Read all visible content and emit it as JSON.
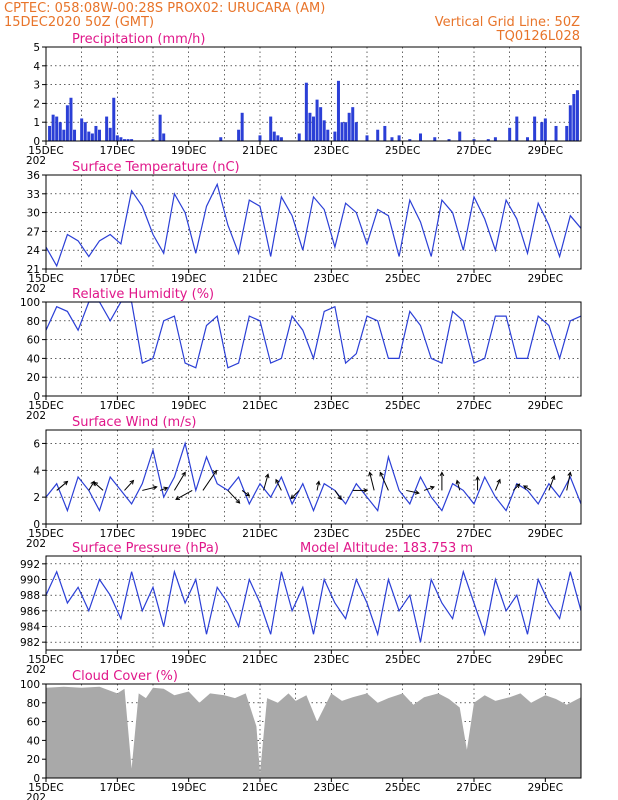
{
  "header": {
    "line1_left": "CPTEC:   058:08W-00:28S   PROX02: URUCARA (AM)",
    "line2_left": "15DEC2020 50Z (GMT)",
    "line2_right": "Vertical Grid Line: 50Z",
    "line3_right": "TQ0126L028"
  },
  "colors": {
    "series": "#2b3fd6",
    "title": "#e0178a",
    "header": "#e8742a",
    "cloud": "#a9a9a9"
  },
  "x_axis": {
    "start_day": 15,
    "end_day": 30,
    "tick_labels": [
      "15DEC",
      "17DEC",
      "19DEC",
      "21DEC",
      "23DEC",
      "25DEC",
      "27DEC",
      "29DEC"
    ],
    "tick_days": [
      15,
      17,
      19,
      21,
      23,
      25,
      27,
      29
    ],
    "year_fragment": "202"
  },
  "chart_data": [
    {
      "id": "precip",
      "type": "bar",
      "title": "Precipitation (mm/h)",
      "ylim": [
        0,
        5
      ],
      "yticks": [
        0,
        1,
        2,
        3,
        4,
        5
      ],
      "x_days": [
        15.1,
        15.2,
        15.3,
        15.4,
        15.5,
        15.6,
        15.7,
        15.8,
        16.0,
        16.1,
        16.2,
        16.3,
        16.4,
        16.5,
        16.7,
        16.8,
        16.9,
        17.0,
        17.1,
        17.2,
        17.3,
        17.4,
        18.0,
        18.2,
        18.3,
        19.9,
        20.4,
        20.5,
        21.0,
        21.3,
        21.4,
        21.5,
        21.6,
        22.1,
        22.3,
        22.4,
        22.5,
        22.6,
        22.7,
        22.8,
        22.9,
        23.1,
        23.2,
        23.3,
        23.4,
        23.5,
        23.6,
        23.7,
        24.0,
        24.3,
        24.5,
        24.7,
        24.9,
        25.2,
        25.5,
        25.9,
        26.3,
        26.6,
        27.0,
        27.4,
        27.6,
        28.0,
        28.2,
        28.5,
        28.7,
        28.9,
        29.0,
        29.3,
        29.6,
        29.7,
        29.8,
        29.9
      ],
      "values": [
        0.8,
        1.4,
        1.3,
        1.0,
        0.6,
        1.9,
        2.3,
        0.6,
        1.2,
        1.0,
        0.5,
        0.4,
        0.8,
        0.6,
        1.3,
        0.7,
        2.3,
        0.3,
        0.2,
        0.1,
        0.1,
        0.1,
        0.1,
        1.4,
        0.4,
        0.2,
        0.6,
        1.5,
        0.3,
        1.3,
        0.5,
        0.3,
        0.2,
        0.4,
        3.1,
        1.5,
        1.3,
        2.2,
        1.8,
        1.1,
        0.6,
        0.5,
        3.2,
        1.0,
        1.0,
        1.5,
        1.8,
        1.0,
        0.3,
        0.6,
        0.8,
        0.2,
        0.3,
        0.1,
        0.4,
        0.2,
        0.1,
        0.5,
        0.1,
        0.1,
        0.2,
        0.7,
        1.3,
        0.2,
        1.3,
        1.0,
        1.2,
        0.8,
        0.8,
        1.9,
        2.5,
        2.7
      ]
    },
    {
      "id": "temp",
      "type": "line",
      "title": "Surface Temperature (nC)",
      "ylim": [
        21,
        36
      ],
      "yticks": [
        21,
        24,
        27,
        30,
        33,
        36
      ],
      "x_days": [
        15.0,
        15.3,
        15.6,
        15.9,
        16.2,
        16.5,
        16.8,
        17.1,
        17.4,
        17.7,
        18.0,
        18.3,
        18.6,
        18.9,
        19.2,
        19.5,
        19.8,
        20.1,
        20.4,
        20.7,
        21.0,
        21.3,
        21.6,
        21.9,
        22.2,
        22.5,
        22.8,
        23.1,
        23.4,
        23.7,
        24.0,
        24.3,
        24.6,
        24.9,
        25.2,
        25.5,
        25.8,
        26.1,
        26.4,
        26.7,
        27.0,
        27.3,
        27.6,
        27.9,
        28.2,
        28.5,
        28.8,
        29.1,
        29.4,
        29.7,
        30.0
      ],
      "values": [
        24.5,
        21.5,
        26.5,
        25.5,
        23.0,
        25.5,
        26.5,
        25.0,
        33.5,
        31.0,
        26.5,
        23.5,
        33.0,
        30.0,
        23.5,
        31.0,
        34.5,
        28.0,
        23.5,
        32.0,
        31.0,
        23.0,
        32.5,
        29.5,
        24.0,
        32.5,
        30.5,
        24.5,
        31.5,
        30.0,
        25.0,
        30.5,
        29.5,
        23.0,
        32.0,
        28.5,
        23.0,
        32.0,
        30.0,
        24.0,
        32.5,
        29.0,
        24.0,
        32.0,
        29.0,
        23.5,
        31.5,
        28.0,
        23.0,
        29.5,
        27.5
      ]
    },
    {
      "id": "rh",
      "type": "line",
      "title": "Relative Humidity (%)",
      "ylim": [
        0,
        100
      ],
      "yticks": [
        0,
        20,
        40,
        60,
        80,
        100
      ],
      "x_days": [
        15.0,
        15.3,
        15.6,
        15.9,
        16.2,
        16.5,
        16.8,
        17.1,
        17.4,
        17.7,
        18.0,
        18.3,
        18.6,
        18.9,
        19.2,
        19.5,
        19.8,
        20.1,
        20.4,
        20.7,
        21.0,
        21.3,
        21.6,
        21.9,
        22.2,
        22.5,
        22.8,
        23.1,
        23.4,
        23.7,
        24.0,
        24.3,
        24.6,
        24.9,
        25.2,
        25.5,
        25.8,
        26.1,
        26.4,
        26.7,
        27.0,
        27.3,
        27.6,
        27.9,
        28.2,
        28.5,
        28.8,
        29.1,
        29.4,
        29.7,
        30.0
      ],
      "values": [
        70,
        95,
        90,
        70,
        100,
        100,
        80,
        100,
        100,
        35,
        40,
        80,
        85,
        35,
        30,
        75,
        85,
        30,
        35,
        85,
        80,
        35,
        40,
        85,
        70,
        40,
        90,
        95,
        35,
        45,
        85,
        80,
        40,
        40,
        90,
        75,
        40,
        35,
        90,
        80,
        35,
        40,
        85,
        85,
        40,
        40,
        85,
        75,
        40,
        80,
        85
      ]
    },
    {
      "id": "wind",
      "type": "line",
      "title": "Surface Wind (m/s)",
      "ylim": [
        0,
        7
      ],
      "yticks": [
        0,
        2,
        4,
        6
      ],
      "x_days": [
        15.0,
        15.3,
        15.6,
        15.9,
        16.2,
        16.5,
        16.8,
        17.1,
        17.4,
        17.7,
        18.0,
        18.3,
        18.6,
        18.9,
        19.2,
        19.5,
        19.8,
        20.1,
        20.4,
        20.7,
        21.0,
        21.3,
        21.6,
        21.9,
        22.2,
        22.5,
        22.8,
        23.1,
        23.4,
        23.7,
        24.0,
        24.3,
        24.6,
        24.9,
        25.2,
        25.5,
        25.8,
        26.1,
        26.4,
        26.7,
        27.0,
        27.3,
        27.6,
        27.9,
        28.2,
        28.5,
        28.8,
        29.1,
        29.4,
        29.7,
        30.0
      ],
      "values": [
        2.0,
        3.0,
        1.0,
        3.5,
        2.5,
        1.0,
        3.5,
        2.5,
        1.5,
        3.0,
        5.5,
        2.0,
        3.5,
        6.0,
        2.5,
        5.0,
        3.0,
        2.5,
        3.5,
        1.5,
        3.0,
        2.0,
        3.5,
        1.5,
        3.0,
        1.0,
        3.0,
        2.5,
        1.5,
        3.0,
        2.0,
        1.0,
        5.0,
        2.5,
        1.5,
        3.5,
        2.0,
        1.0,
        3.0,
        2.5,
        1.5,
        3.5,
        2.0,
        1.0,
        3.0,
        2.5,
        1.5,
        3.0,
        2.0,
        3.5,
        1.5
      ],
      "vectors": {
        "x_days": [
          15.3,
          16.2,
          16.6,
          17.2,
          17.7,
          18.2,
          18.6,
          19.1,
          19.4,
          20.1,
          20.5,
          21.1,
          21.6,
          22.1,
          22.6,
          23.1,
          23.6,
          24.2,
          24.6,
          25.1,
          25.6,
          26.1,
          26.6,
          27.1,
          27.6,
          28.1,
          28.6,
          29.1,
          29.6
        ],
        "u": [
          1.2,
          0.6,
          -1.0,
          1.0,
          1.6,
          0.8,
          1.2,
          -1.8,
          1.5,
          1.3,
          0.8,
          0.5,
          -0.6,
          -0.9,
          0.2,
          0.7,
          1.6,
          -0.5,
          -0.9,
          1.4,
          1.1,
          0.0,
          -0.3,
          0.0,
          0.5,
          0.7,
          -0.8,
          0.6,
          0.4
        ],
        "v": [
          1.0,
          1.0,
          0.9,
          1.1,
          0.4,
          0.3,
          2.0,
          -1.0,
          2.2,
          -1.4,
          -0.6,
          1.8,
          1.2,
          -0.9,
          1.0,
          -1.0,
          0.0,
          2.0,
          2.0,
          -0.3,
          0.4,
          2.0,
          1.1,
          1.5,
          1.2,
          0.7,
          0.5,
          1.6,
          2.0
        ]
      }
    },
    {
      "id": "pressure",
      "type": "line",
      "title": "Surface Pressure (hPa)",
      "subtitle": "Model Altitude: 183.753 m",
      "ylim": [
        981,
        993
      ],
      "yticks": [
        982,
        984,
        986,
        988,
        990,
        992
      ],
      "x_days": [
        15.0,
        15.3,
        15.6,
        15.9,
        16.2,
        16.5,
        16.8,
        17.1,
        17.4,
        17.7,
        18.0,
        18.3,
        18.6,
        18.9,
        19.2,
        19.5,
        19.8,
        20.1,
        20.4,
        20.7,
        21.0,
        21.3,
        21.6,
        21.9,
        22.2,
        22.5,
        22.8,
        23.1,
        23.4,
        23.7,
        24.0,
        24.3,
        24.6,
        24.9,
        25.2,
        25.5,
        25.8,
        26.1,
        26.4,
        26.7,
        27.0,
        27.3,
        27.6,
        27.9,
        28.2,
        28.5,
        28.8,
        29.1,
        29.4,
        29.7,
        30.0
      ],
      "values": [
        988,
        991,
        987,
        989,
        986,
        990,
        988,
        985,
        991,
        986,
        989,
        984,
        991,
        987,
        990,
        983,
        989,
        987,
        984,
        990,
        987,
        983,
        991,
        986,
        989,
        983,
        990,
        987,
        985,
        990,
        987,
        983,
        990,
        986,
        988,
        982,
        990,
        987,
        985,
        991,
        987,
        983,
        990,
        986,
        988,
        983,
        990,
        987,
        985,
        991,
        986
      ]
    },
    {
      "id": "cloud",
      "type": "area",
      "title": "Cloud Cover (%)",
      "ylim": [
        0,
        100
      ],
      "yticks": [
        0,
        20,
        40,
        60,
        80,
        100
      ],
      "x_days": [
        15.0,
        15.5,
        16.0,
        16.5,
        17.0,
        17.2,
        17.4,
        17.6,
        17.8,
        18.0,
        18.3,
        18.6,
        19.0,
        19.3,
        19.6,
        20.0,
        20.3,
        20.6,
        20.9,
        21.0,
        21.2,
        21.5,
        21.8,
        22.0,
        22.3,
        22.6,
        23.0,
        23.3,
        23.6,
        24.0,
        24.3,
        24.6,
        25.0,
        25.3,
        25.6,
        26.0,
        26.3,
        26.6,
        26.8,
        27.0,
        27.3,
        27.6,
        28.0,
        28.3,
        28.6,
        29.0,
        29.3,
        29.6,
        30.0
      ],
      "values": [
        96,
        97,
        96,
        97,
        90,
        95,
        10,
        90,
        85,
        96,
        95,
        88,
        92,
        80,
        90,
        88,
        85,
        90,
        55,
        5,
        85,
        80,
        90,
        82,
        88,
        60,
        90,
        82,
        86,
        90,
        80,
        85,
        90,
        78,
        86,
        90,
        84,
        75,
        30,
        80,
        88,
        82,
        86,
        90,
        80,
        88,
        84,
        78,
        86
      ]
    }
  ]
}
